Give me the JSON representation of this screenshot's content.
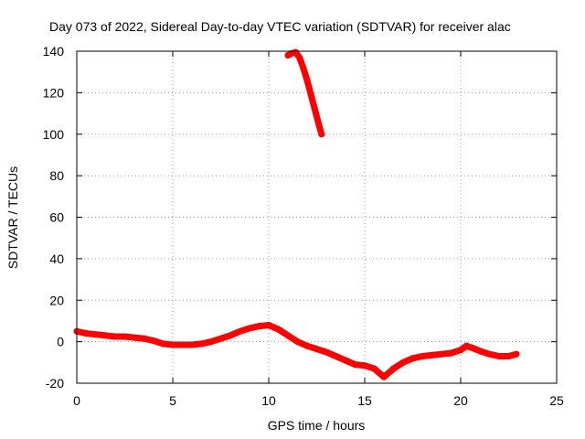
{
  "chart_data": {
    "type": "scatter",
    "title": "Day 073 of 2022, Sidereal Day-to-day VTEC variation (SDTVAR) for receiver alac",
    "xlabel": "GPS time / hours",
    "ylabel": "SDTVAR / TECUs",
    "xlim": [
      0,
      25
    ],
    "ylim": [
      -20,
      140
    ],
    "xticks": [
      0,
      5,
      10,
      15,
      20,
      25
    ],
    "yticks": [
      -20,
      0,
      20,
      40,
      60,
      80,
      100,
      120,
      140
    ],
    "xtick_labels": [
      "0",
      "5",
      "10",
      "15",
      "20",
      "25"
    ],
    "ytick_labels": [
      "-20",
      "0",
      "20",
      "40",
      "60",
      "80",
      "100",
      "120",
      "140"
    ],
    "grid": true,
    "legend": "none",
    "colors": {
      "series": "#ff0000",
      "grid": "#a0a0a0",
      "axes": "#000000"
    },
    "series": [
      {
        "name": "main",
        "x": [
          0.0,
          0.5,
          1.0,
          1.5,
          2.0,
          2.5,
          3.0,
          3.5,
          4.0,
          4.5,
          5.0,
          5.5,
          6.0,
          6.5,
          7.0,
          7.5,
          8.0,
          8.5,
          9.0,
          9.5,
          10.0,
          10.5,
          11.0,
          11.5,
          12.0,
          12.5,
          13.0,
          13.5,
          14.0,
          14.5,
          15.0,
          15.5,
          16.0,
          16.5,
          17.0,
          17.5,
          18.0,
          18.5,
          19.0,
          19.5,
          20.0,
          20.3,
          20.6,
          21.0,
          21.5,
          22.0,
          22.5,
          22.9
        ],
        "y": [
          5,
          4,
          3.5,
          3,
          2.5,
          2.5,
          2,
          1.5,
          0.5,
          -1,
          -1.5,
          -1.5,
          -1.5,
          -1,
          0,
          1.5,
          3,
          5,
          6.5,
          7.5,
          8,
          6,
          3,
          0,
          -2,
          -3.5,
          -5,
          -7,
          -9,
          -11,
          -11.5,
          -13,
          -17,
          -13,
          -10,
          -8,
          -7,
          -6.5,
          -6,
          -5.5,
          -4,
          -2,
          -3,
          -4.5,
          -6,
          -7,
          -7,
          -6
        ]
      },
      {
        "name": "segment",
        "x": [
          11.0,
          11.2,
          11.4,
          11.6,
          11.8,
          12.0,
          12.2,
          12.4,
          12.6,
          12.75
        ],
        "y": [
          138,
          139,
          139.5,
          137,
          132,
          126,
          119,
          112,
          105,
          100
        ]
      }
    ]
  }
}
